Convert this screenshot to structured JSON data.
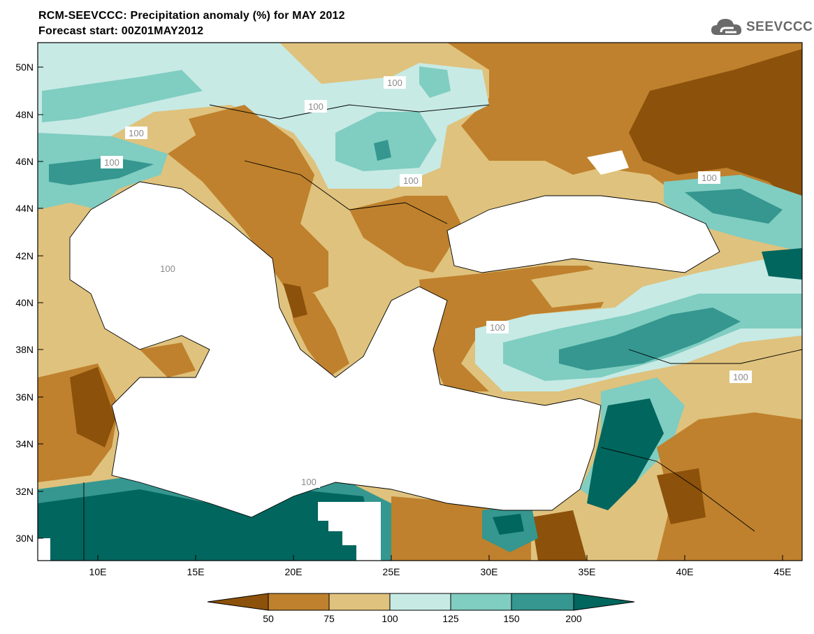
{
  "title": {
    "line1": "RCM-SEEVCCC: Precipitation anomaly (%) for MAY 2012",
    "line2": "Forecast start: 00Z01MAY2012"
  },
  "logo": {
    "text": "SEEVCCC",
    "icon": "cloud-icon"
  },
  "colors": {
    "c_lt50": "#8c510a",
    "c_50_75": "#bf812d",
    "c_75_100": "#dfc27d",
    "c_100_125": "#c7eae5",
    "c_125_150": "#80cdc1",
    "c_150_200": "#35978f",
    "c_gt200": "#01665e",
    "contour100": "#a0a0a0",
    "land_white": "#ffffff",
    "sea_white": "#ffffff"
  },
  "axes": {
    "lat_labels": [
      "50N",
      "48N",
      "46N",
      "44N",
      "42N",
      "40N",
      "38N",
      "36N",
      "34N",
      "32N",
      "30N"
    ],
    "lon_labels": [
      "10E",
      "15E",
      "20E",
      "25E",
      "30E",
      "35E",
      "40E",
      "45E"
    ]
  },
  "contour_labels": [
    "100",
    "100",
    "100",
    "100",
    "100",
    "100",
    "100",
    "100",
    "100",
    "100"
  ],
  "legend": {
    "ticks": [
      "50",
      "75",
      "100",
      "125",
      "150",
      "200"
    ]
  }
}
